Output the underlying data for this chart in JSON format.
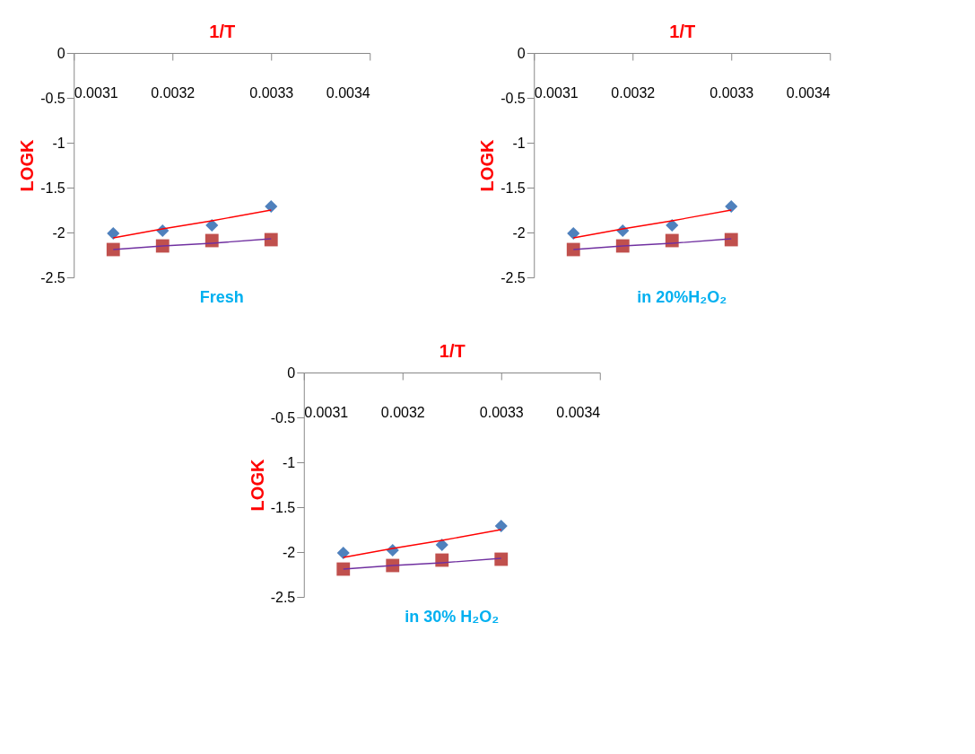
{
  "chart_data": [
    {
      "type": "scatter",
      "title": "Fresh",
      "xlabel": "1/T",
      "ylabel": "LOGK",
      "xlim": [
        0.0031,
        0.0034
      ],
      "xticks": [
        0.0031,
        0.0032,
        0.0033,
        0.0034
      ],
      "ylim": [
        -2.5,
        0
      ],
      "yticks": [
        -2.5,
        -2,
        -1.5,
        -1,
        -0.5,
        0
      ],
      "x": [
        0.00314,
        0.00319,
        0.00324,
        0.0033
      ],
      "series": [
        {
          "color": "#4f81bd",
          "marker": "diamond",
          "values": [
            -2.01,
            -1.98,
            -1.92,
            -1.71
          ]
        },
        {
          "color": "#c0504d",
          "marker": "square",
          "values": [
            -2.19,
            -2.15,
            -2.09,
            -2.08
          ]
        },
        {
          "type": "line",
          "color": "#ff0000",
          "values": [
            -2.06,
            -1.96,
            -1.87,
            -1.75
          ]
        },
        {
          "type": "line",
          "color": "#7030a0",
          "values": [
            -2.19,
            -2.15,
            -2.12,
            -2.07
          ]
        }
      ]
    },
    {
      "type": "scatter",
      "title": "in 20%H₂O₂",
      "xlabel": "1/T",
      "ylabel": "LOGK",
      "xlim": [
        0.0031,
        0.0034
      ],
      "xticks": [
        0.0031,
        0.0032,
        0.0033,
        0.0034
      ],
      "ylim": [
        -2.5,
        0
      ],
      "yticks": [
        -2.5,
        -2,
        -1.5,
        -1,
        -0.5,
        0
      ],
      "x": [
        0.00314,
        0.00319,
        0.00324,
        0.0033
      ],
      "series": [
        {
          "color": "#4f81bd",
          "marker": "diamond",
          "values": [
            -2.01,
            -1.98,
            -1.92,
            -1.71
          ]
        },
        {
          "color": "#c0504d",
          "marker": "square",
          "values": [
            -2.19,
            -2.15,
            -2.09,
            -2.08
          ]
        },
        {
          "type": "line",
          "color": "#ff0000",
          "values": [
            -2.06,
            -1.96,
            -1.87,
            -1.75
          ]
        },
        {
          "type": "line",
          "color": "#7030a0",
          "values": [
            -2.19,
            -2.15,
            -2.12,
            -2.07
          ]
        }
      ]
    },
    {
      "type": "scatter",
      "title": "in 30% H₂O₂",
      "xlabel": "1/T",
      "ylabel": "LOGK",
      "xlim": [
        0.0031,
        0.0034
      ],
      "xticks": [
        0.0031,
        0.0032,
        0.0033,
        0.0034
      ],
      "ylim": [
        -2.5,
        0
      ],
      "yticks": [
        -2.5,
        -2,
        -1.5,
        -1,
        -0.5,
        0
      ],
      "x": [
        0.00314,
        0.00319,
        0.00324,
        0.0033
      ],
      "series": [
        {
          "color": "#4f81bd",
          "marker": "diamond",
          "values": [
            -2.01,
            -1.98,
            -1.92,
            -1.71
          ]
        },
        {
          "color": "#c0504d",
          "marker": "square",
          "values": [
            -2.19,
            -2.15,
            -2.09,
            -2.08
          ]
        },
        {
          "type": "line",
          "color": "#ff0000",
          "values": [
            -2.06,
            -1.96,
            -1.87,
            -1.75
          ]
        },
        {
          "type": "line",
          "color": "#7030a0",
          "values": [
            -2.19,
            -2.15,
            -2.12,
            -2.07
          ]
        }
      ]
    }
  ]
}
